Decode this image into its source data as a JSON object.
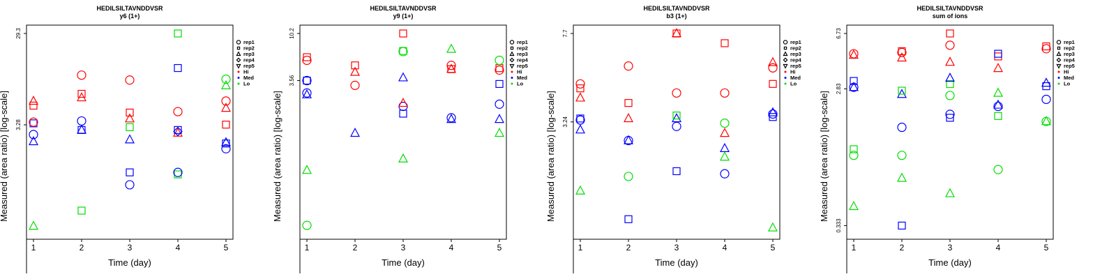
{
  "chart_data": [
    {
      "type": "scatter",
      "title": "HEDILSILTAVNDDVSR",
      "subtitle": "y6 (1+)",
      "xlabel": "Time (day)",
      "ylabel": "Measured (area ratio) [log-scale]",
      "x_ticks": [
        "1",
        "2",
        "3",
        "4",
        "5"
      ],
      "y_ticks": [
        "3.28",
        "29.3"
      ],
      "ylim": [
        0.25,
        29.3
      ],
      "y_scale": "log",
      "legend_placement": "right",
      "points": [
        {
          "x": 1,
          "y": 0.29,
          "shape": "triangle",
          "group": "Lo"
        },
        {
          "x": 1,
          "y": 2.6,
          "shape": "circle",
          "group": "Med"
        },
        {
          "x": 1,
          "y": 2.2,
          "shape": "triangle",
          "group": "Med"
        },
        {
          "x": 1,
          "y": 3.4,
          "shape": "square",
          "group": "Med"
        },
        {
          "x": 1,
          "y": 3.5,
          "shape": "circle",
          "group": "Hi"
        },
        {
          "x": 1,
          "y": 5.2,
          "shape": "square",
          "group": "Hi"
        },
        {
          "x": 1,
          "y": 5.8,
          "shape": "triangle",
          "group": "Hi"
        },
        {
          "x": 2,
          "y": 0.42,
          "shape": "square",
          "group": "Lo"
        },
        {
          "x": 2,
          "y": 2.9,
          "shape": "square",
          "group": "Med"
        },
        {
          "x": 2,
          "y": 2.9,
          "shape": "triangle",
          "group": "Med"
        },
        {
          "x": 2,
          "y": 3.6,
          "shape": "circle",
          "group": "Med"
        },
        {
          "x": 2,
          "y": 6.3,
          "shape": "triangle",
          "group": "Hi"
        },
        {
          "x": 2,
          "y": 6.9,
          "shape": "square",
          "group": "Hi"
        },
        {
          "x": 2,
          "y": 10.8,
          "shape": "circle",
          "group": "Hi"
        },
        {
          "x": 3,
          "y": 0.78,
          "shape": "circle",
          "group": "Med"
        },
        {
          "x": 3,
          "y": 1.05,
          "shape": "square",
          "group": "Med"
        },
        {
          "x": 3,
          "y": 2.3,
          "shape": "triangle",
          "group": "Med"
        },
        {
          "x": 3,
          "y": 3.1,
          "shape": "square",
          "group": "Lo"
        },
        {
          "x": 3,
          "y": 3.8,
          "shape": "triangle",
          "group": "Hi"
        },
        {
          "x": 3,
          "y": 4.4,
          "shape": "square",
          "group": "Hi"
        },
        {
          "x": 3,
          "y": 9.6,
          "shape": "circle",
          "group": "Hi"
        },
        {
          "x": 4,
          "y": 1.0,
          "shape": "square",
          "group": "Lo"
        },
        {
          "x": 4,
          "y": 1.05,
          "shape": "circle",
          "group": "Med"
        },
        {
          "x": 4,
          "y": 2.7,
          "shape": "triangle",
          "group": "Hi"
        },
        {
          "x": 4,
          "y": 2.8,
          "shape": "diamond",
          "group": "Med"
        },
        {
          "x": 4,
          "y": 2.9,
          "shape": "square",
          "group": "Med"
        },
        {
          "x": 4,
          "y": 4.5,
          "shape": "circle",
          "group": "Hi"
        },
        {
          "x": 4,
          "y": 12.8,
          "shape": "square",
          "group": "Med"
        },
        {
          "x": 4,
          "y": 29.3,
          "shape": "square",
          "group": "Lo"
        },
        {
          "x": 5,
          "y": 1.85,
          "shape": "circle",
          "group": "Med"
        },
        {
          "x": 5,
          "y": 2.1,
          "shape": "square",
          "group": "Med"
        },
        {
          "x": 5,
          "y": 2.15,
          "shape": "triangle",
          "group": "Med"
        },
        {
          "x": 5,
          "y": 3.3,
          "shape": "square",
          "group": "Hi"
        },
        {
          "x": 5,
          "y": 4.9,
          "shape": "triangle",
          "group": "Hi"
        },
        {
          "x": 5,
          "y": 5.8,
          "shape": "circle",
          "group": "Hi"
        },
        {
          "x": 5,
          "y": 8.4,
          "shape": "triangle",
          "group": "Lo"
        },
        {
          "x": 5,
          "y": 9.8,
          "shape": "circle",
          "group": "Lo"
        }
      ]
    },
    {
      "type": "scatter",
      "title": "HEDILSILTAVNDDVSR",
      "subtitle": "y9 (1+)",
      "xlabel": "Time (day)",
      "ylabel": "Measured (area ratio) [log-scale]",
      "x_ticks": [
        "1",
        "2",
        "3",
        "4",
        "5"
      ],
      "y_ticks": [
        "3.56",
        "10.2"
      ],
      "ylim": [
        0.12,
        10.2
      ],
      "y_scale": "log",
      "legend_placement": "right",
      "points": [
        {
          "x": 1,
          "y": 0.14,
          "shape": "circle",
          "group": "Lo"
        },
        {
          "x": 1,
          "y": 0.48,
          "shape": "triangle",
          "group": "Lo"
        },
        {
          "x": 1,
          "y": 2.7,
          "shape": "circle",
          "group": "Med"
        },
        {
          "x": 1,
          "y": 2.6,
          "shape": "triangle",
          "group": "Med"
        },
        {
          "x": 1,
          "y": 3.56,
          "shape": "circle",
          "group": "Med"
        },
        {
          "x": 1,
          "y": 3.56,
          "shape": "square",
          "group": "Med"
        },
        {
          "x": 1,
          "y": 5.6,
          "shape": "circle",
          "group": "Hi"
        },
        {
          "x": 1,
          "y": 6.0,
          "shape": "square",
          "group": "Hi"
        },
        {
          "x": 2,
          "y": 1.1,
          "shape": "triangle",
          "group": "Med"
        },
        {
          "x": 2,
          "y": 3.2,
          "shape": "circle",
          "group": "Hi"
        },
        {
          "x": 2,
          "y": 4.3,
          "shape": "triangle",
          "group": "Hi"
        },
        {
          "x": 2,
          "y": 5.0,
          "shape": "square",
          "group": "Hi"
        },
        {
          "x": 3,
          "y": 0.62,
          "shape": "triangle",
          "group": "Lo"
        },
        {
          "x": 3,
          "y": 1.7,
          "shape": "square",
          "group": "Med"
        },
        {
          "x": 3,
          "y": 2.0,
          "shape": "circle",
          "group": "Med"
        },
        {
          "x": 3,
          "y": 2.15,
          "shape": "triangle",
          "group": "Hi"
        },
        {
          "x": 3,
          "y": 3.8,
          "shape": "triangle",
          "group": "Med"
        },
        {
          "x": 3,
          "y": 6.8,
          "shape": "circle",
          "group": "Lo"
        },
        {
          "x": 3,
          "y": 6.9,
          "shape": "square",
          "group": "Lo"
        },
        {
          "x": 3,
          "y": 10.2,
          "shape": "square",
          "group": "Hi"
        },
        {
          "x": 4,
          "y": 1.5,
          "shape": "triangle",
          "group": "Med"
        },
        {
          "x": 4,
          "y": 1.55,
          "shape": "circle",
          "group": "Med"
        },
        {
          "x": 4,
          "y": 4.6,
          "shape": "square",
          "group": "Hi"
        },
        {
          "x": 4,
          "y": 4.6,
          "shape": "triangle",
          "group": "Hi"
        },
        {
          "x": 4,
          "y": 5.0,
          "shape": "circle",
          "group": "Hi"
        },
        {
          "x": 4,
          "y": 7.2,
          "shape": "triangle",
          "group": "Lo"
        },
        {
          "x": 5,
          "y": 1.1,
          "shape": "triangle",
          "group": "Lo"
        },
        {
          "x": 5,
          "y": 1.5,
          "shape": "triangle",
          "group": "Med"
        },
        {
          "x": 5,
          "y": 2.1,
          "shape": "circle",
          "group": "Med"
        },
        {
          "x": 5,
          "y": 3.3,
          "shape": "square",
          "group": "Med"
        },
        {
          "x": 5,
          "y": 4.5,
          "shape": "circle",
          "group": "Hi"
        },
        {
          "x": 5,
          "y": 4.7,
          "shape": "square",
          "group": "Hi"
        },
        {
          "x": 5,
          "y": 5.6,
          "shape": "circle",
          "group": "Lo"
        }
      ]
    },
    {
      "type": "scatter",
      "title": "HEDILSILTAVNDDVSR",
      "subtitle": "b3 (1+)",
      "xlabel": "Time (day)",
      "ylabel": "Measured (area ratio) [log-scale]",
      "x_ticks": [
        "1",
        "2",
        "3",
        "4",
        "5"
      ],
      "y_ticks": [
        "3.24",
        "7.7"
      ],
      "ylim": [
        1.1,
        7.7
      ],
      "y_scale": "log",
      "legend_placement": "right",
      "points": [
        {
          "x": 1,
          "y": 1.65,
          "shape": "triangle",
          "group": "Lo"
        },
        {
          "x": 1,
          "y": 3.0,
          "shape": "triangle",
          "group": "Med"
        },
        {
          "x": 1,
          "y": 3.3,
          "shape": "circle",
          "group": "Med"
        },
        {
          "x": 1,
          "y": 3.35,
          "shape": "square",
          "group": "Med"
        },
        {
          "x": 1,
          "y": 4.1,
          "shape": "triangle",
          "group": "Hi"
        },
        {
          "x": 1,
          "y": 4.5,
          "shape": "square",
          "group": "Hi"
        },
        {
          "x": 1,
          "y": 4.7,
          "shape": "circle",
          "group": "Hi"
        },
        {
          "x": 2,
          "y": 1.25,
          "shape": "square",
          "group": "Med"
        },
        {
          "x": 2,
          "y": 1.9,
          "shape": "circle",
          "group": "Lo"
        },
        {
          "x": 2,
          "y": 2.7,
          "shape": "circle",
          "group": "Med"
        },
        {
          "x": 2,
          "y": 2.7,
          "shape": "triangle",
          "group": "Med"
        },
        {
          "x": 2,
          "y": 3.35,
          "shape": "triangle",
          "group": "Hi"
        },
        {
          "x": 2,
          "y": 3.9,
          "shape": "square",
          "group": "Hi"
        },
        {
          "x": 2,
          "y": 5.6,
          "shape": "circle",
          "group": "Hi"
        },
        {
          "x": 3,
          "y": 2.0,
          "shape": "square",
          "group": "Med"
        },
        {
          "x": 3,
          "y": 3.1,
          "shape": "circle",
          "group": "Med"
        },
        {
          "x": 3,
          "y": 3.35,
          "shape": "triangle",
          "group": "Med"
        },
        {
          "x": 3,
          "y": 3.45,
          "shape": "square",
          "group": "Lo"
        },
        {
          "x": 3,
          "y": 4.3,
          "shape": "circle",
          "group": "Hi"
        },
        {
          "x": 3,
          "y": 7.7,
          "shape": "square",
          "group": "Hi"
        },
        {
          "x": 3,
          "y": 7.7,
          "shape": "triangle",
          "group": "Hi"
        },
        {
          "x": 4,
          "y": 1.95,
          "shape": "circle",
          "group": "Med"
        },
        {
          "x": 4,
          "y": 2.3,
          "shape": "triangle",
          "group": "Lo"
        },
        {
          "x": 4,
          "y": 2.5,
          "shape": "triangle",
          "group": "Med"
        },
        {
          "x": 4,
          "y": 2.9,
          "shape": "triangle",
          "group": "Hi"
        },
        {
          "x": 4,
          "y": 3.2,
          "shape": "circle",
          "group": "Lo"
        },
        {
          "x": 4,
          "y": 4.3,
          "shape": "circle",
          "group": "Hi"
        },
        {
          "x": 4,
          "y": 7.0,
          "shape": "square",
          "group": "Hi"
        },
        {
          "x": 5,
          "y": 1.15,
          "shape": "triangle",
          "group": "Lo"
        },
        {
          "x": 5,
          "y": 3.4,
          "shape": "square",
          "group": "Med"
        },
        {
          "x": 5,
          "y": 3.5,
          "shape": "circle",
          "group": "Med"
        },
        {
          "x": 5,
          "y": 3.55,
          "shape": "triangle",
          "group": "Med"
        },
        {
          "x": 5,
          "y": 4.7,
          "shape": "square",
          "group": "Hi"
        },
        {
          "x": 5,
          "y": 5.5,
          "shape": "circle",
          "group": "Hi"
        },
        {
          "x": 5,
          "y": 5.8,
          "shape": "triangle",
          "group": "Hi"
        }
      ]
    },
    {
      "type": "scatter",
      "title": "HEDILSILTAVNDDVSR",
      "subtitle": "sum of ions",
      "xlabel": "Time (day)",
      "ylabel": "Measured (area ratio) [log-scale]",
      "x_ticks": [
        "1",
        "2",
        "3",
        "4",
        "5"
      ],
      "y_ticks": [
        "0.333",
        "2.83",
        "6.73"
      ],
      "ylim": [
        0.3,
        6.73
      ],
      "y_scale": "log",
      "legend_placement": "right",
      "points": [
        {
          "x": 1,
          "y": 0.45,
          "shape": "triangle",
          "group": "Lo"
        },
        {
          "x": 1,
          "y": 1.0,
          "shape": "circle",
          "group": "Lo"
        },
        {
          "x": 1,
          "y": 1.1,
          "shape": "square",
          "group": "Lo"
        },
        {
          "x": 1,
          "y": 2.9,
          "shape": "circle",
          "group": "Med"
        },
        {
          "x": 1,
          "y": 2.9,
          "shape": "triangle",
          "group": "Med"
        },
        {
          "x": 1,
          "y": 3.2,
          "shape": "square",
          "group": "Med"
        },
        {
          "x": 1,
          "y": 4.9,
          "shape": "circle",
          "group": "Hi"
        },
        {
          "x": 1,
          "y": 4.8,
          "shape": "triangle",
          "group": "Hi"
        },
        {
          "x": 2,
          "y": 0.333,
          "shape": "square",
          "group": "Med"
        },
        {
          "x": 2,
          "y": 0.7,
          "shape": "triangle",
          "group": "Lo"
        },
        {
          "x": 2,
          "y": 1.0,
          "shape": "circle",
          "group": "Lo"
        },
        {
          "x": 2,
          "y": 1.55,
          "shape": "circle",
          "group": "Med"
        },
        {
          "x": 2,
          "y": 2.6,
          "shape": "triangle",
          "group": "Med"
        },
        {
          "x": 2,
          "y": 2.75,
          "shape": "square",
          "group": "Lo"
        },
        {
          "x": 2,
          "y": 4.6,
          "shape": "triangle",
          "group": "Hi"
        },
        {
          "x": 2,
          "y": 5.0,
          "shape": "circle",
          "group": "Hi"
        },
        {
          "x": 2,
          "y": 5.1,
          "shape": "square",
          "group": "Hi"
        },
        {
          "x": 3,
          "y": 0.55,
          "shape": "triangle",
          "group": "Lo"
        },
        {
          "x": 3,
          "y": 1.8,
          "shape": "square",
          "group": "Med"
        },
        {
          "x": 3,
          "y": 1.9,
          "shape": "circle",
          "group": "Med"
        },
        {
          "x": 3,
          "y": 2.55,
          "shape": "circle",
          "group": "Lo"
        },
        {
          "x": 3,
          "y": 3.05,
          "shape": "square",
          "group": "Lo"
        },
        {
          "x": 3,
          "y": 3.35,
          "shape": "triangle",
          "group": "Med"
        },
        {
          "x": 3,
          "y": 4.3,
          "shape": "triangle",
          "group": "Hi"
        },
        {
          "x": 3,
          "y": 5.6,
          "shape": "circle",
          "group": "Hi"
        },
        {
          "x": 3,
          "y": 6.73,
          "shape": "square",
          "group": "Hi"
        },
        {
          "x": 4,
          "y": 0.8,
          "shape": "circle",
          "group": "Lo"
        },
        {
          "x": 4,
          "y": 1.85,
          "shape": "square",
          "group": "Lo"
        },
        {
          "x": 4,
          "y": 2.15,
          "shape": "circle",
          "group": "Med"
        },
        {
          "x": 4,
          "y": 2.2,
          "shape": "triangle",
          "group": "Med"
        },
        {
          "x": 4,
          "y": 2.65,
          "shape": "triangle",
          "group": "Lo"
        },
        {
          "x": 4,
          "y": 3.9,
          "shape": "triangle",
          "group": "Hi"
        },
        {
          "x": 4,
          "y": 4.7,
          "shape": "square",
          "group": "Hi"
        },
        {
          "x": 4,
          "y": 4.9,
          "shape": "square",
          "group": "Med"
        },
        {
          "x": 5,
          "y": 1.7,
          "shape": "circle",
          "group": "Lo"
        },
        {
          "x": 5,
          "y": 1.7,
          "shape": "triangle",
          "group": "Lo"
        },
        {
          "x": 5,
          "y": 2.4,
          "shape": "circle",
          "group": "Med"
        },
        {
          "x": 5,
          "y": 2.95,
          "shape": "square",
          "group": "Med"
        },
        {
          "x": 5,
          "y": 3.1,
          "shape": "triangle",
          "group": "Med"
        },
        {
          "x": 5,
          "y": 5.3,
          "shape": "circle",
          "group": "Hi"
        },
        {
          "x": 5,
          "y": 5.5,
          "shape": "square",
          "group": "Hi"
        }
      ]
    }
  ],
  "legend": {
    "shapes": [
      {
        "label": "rep1",
        "shape": "circle"
      },
      {
        "label": "rep2",
        "shape": "square"
      },
      {
        "label": "rep3",
        "shape": "triangle"
      },
      {
        "label": "rep4",
        "shape": "diamond"
      },
      {
        "label": "rep5",
        "shape": "triangle-down"
      }
    ],
    "groups": [
      {
        "label": "Hi",
        "color": "#ff0000"
      },
      {
        "label": "Med",
        "color": "#0000ff"
      },
      {
        "label": "Lo",
        "color": "#00dd00"
      }
    ]
  }
}
